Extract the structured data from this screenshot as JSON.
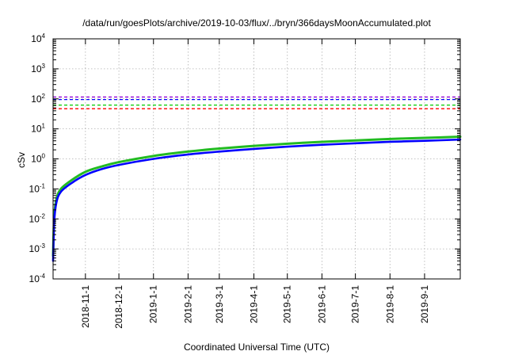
{
  "chart_data": {
    "type": "line",
    "title": "/data/run/goesPlots/archive/2019-10-03/flux/../bryn/366daysMoonAccumulated.plot",
    "xlabel": "Coordinated Universal Time (UTC)",
    "ylabel": "cSv",
    "yscale": "log",
    "ylim": [
      0.0001,
      10000
    ],
    "xlim": [
      "2018-10-03",
      "2019-10-03"
    ],
    "grid": true,
    "y_ticks": [
      {
        "value": 0.0001,
        "base": "10",
        "exp": "-4"
      },
      {
        "value": 0.001,
        "base": "10",
        "exp": "-3"
      },
      {
        "value": 0.01,
        "base": "10",
        "exp": "-2"
      },
      {
        "value": 0.1,
        "base": "10",
        "exp": "-1"
      },
      {
        "value": 1,
        "base": "10",
        "exp": "0"
      },
      {
        "value": 10,
        "base": "10",
        "exp": "1"
      },
      {
        "value": 100,
        "base": "10",
        "exp": "2"
      },
      {
        "value": 1000,
        "base": "10",
        "exp": "3"
      },
      {
        "value": 10000,
        "base": "10",
        "exp": "4"
      }
    ],
    "x_ticks": [
      "2018-11-1",
      "2018-12-1",
      "2019-1-1",
      "2019-2-1",
      "2019-3-1",
      "2019-4-1",
      "2019-5-1",
      "2019-6-1",
      "2019-7-1",
      "2019-8-1",
      "2019-9-1"
    ],
    "threshold_lines": [
      {
        "value": 115,
        "color": "#9400d3"
      },
      {
        "value": 95,
        "color": "#0000ff"
      },
      {
        "value": 62,
        "color": "#00cc00"
      },
      {
        "value": 47,
        "color": "#ff0000"
      }
    ],
    "series": [
      {
        "color": "#22bb22",
        "points": [
          [
            "2018-10-03",
            0.0006
          ],
          [
            "2018-10-04",
            0.011
          ],
          [
            "2018-10-06",
            0.045
          ],
          [
            "2018-10-10",
            0.1
          ],
          [
            "2018-10-20",
            0.2
          ],
          [
            "2018-11-01",
            0.37
          ],
          [
            "2018-11-15",
            0.55
          ],
          [
            "2018-12-01",
            0.78
          ],
          [
            "2019-01-01",
            1.25
          ],
          [
            "2019-02-01",
            1.75
          ],
          [
            "2019-03-01",
            2.2
          ],
          [
            "2019-04-01",
            2.7
          ],
          [
            "2019-05-01",
            3.2
          ],
          [
            "2019-06-01",
            3.7
          ],
          [
            "2019-07-01",
            4.1
          ],
          [
            "2019-08-01",
            4.6
          ],
          [
            "2019-09-01",
            5.0
          ],
          [
            "2019-10-03",
            5.5
          ]
        ]
      },
      {
        "color": "#0000ff",
        "points": [
          [
            "2018-10-03",
            0.0004
          ],
          [
            "2018-10-04",
            0.008
          ],
          [
            "2018-10-06",
            0.035
          ],
          [
            "2018-10-10",
            0.08
          ],
          [
            "2018-10-20",
            0.16
          ],
          [
            "2018-11-01",
            0.29
          ],
          [
            "2018-11-15",
            0.45
          ],
          [
            "2018-12-01",
            0.63
          ],
          [
            "2019-01-01",
            1.0
          ],
          [
            "2019-02-01",
            1.4
          ],
          [
            "2019-03-01",
            1.75
          ],
          [
            "2019-04-01",
            2.15
          ],
          [
            "2019-05-01",
            2.55
          ],
          [
            "2019-06-01",
            2.95
          ],
          [
            "2019-07-01",
            3.3
          ],
          [
            "2019-08-01",
            3.7
          ],
          [
            "2019-09-01",
            4.0
          ],
          [
            "2019-10-03",
            4.4
          ]
        ]
      }
    ]
  }
}
